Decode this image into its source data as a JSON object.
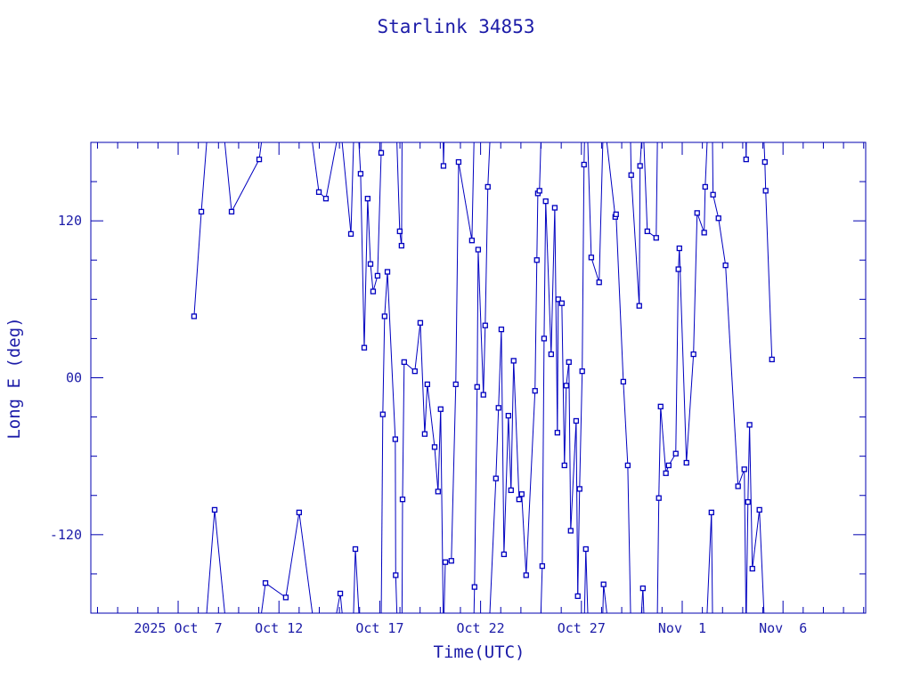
{
  "chart_data": {
    "type": "line",
    "title": "Starlink 34853",
    "xlabel": "Time(UTC)",
    "ylabel": "Long E (deg)",
    "x_unit": "day of month counted from 2025 Oct (values above 31 are November days + 31)",
    "xlim": [
      2.67,
      41.1
    ],
    "ylim": [
      -180,
      180
    ],
    "x_ticks": [
      {
        "value": 7,
        "label": "2025 Oct  7"
      },
      {
        "value": 12,
        "label": "Oct 12"
      },
      {
        "value": 17,
        "label": "Oct 17"
      },
      {
        "value": 22,
        "label": "Oct 22"
      },
      {
        "value": 27,
        "label": "Oct 27"
      },
      {
        "value": 32,
        "label": "Nov  1"
      },
      {
        "value": 37,
        "label": "Nov  6"
      }
    ],
    "y_ticks": [
      {
        "value": 120,
        "label": "120"
      },
      {
        "value": 0,
        "label": "00"
      },
      {
        "value": -120,
        "label": "-120"
      }
    ],
    "y_minor_step": 30,
    "x_minor_step": 1,
    "wrap": true,
    "grid": false,
    "series": [
      {
        "name": "Starlink 34853",
        "color": "#0000c0",
        "marker": "square",
        "x": [
          7.79,
          8.15,
          8.81,
          9.65,
          11.02,
          11.33,
          12.34,
          13.0,
          13.98,
          14.33,
          15.04,
          15.57,
          15.79,
          16.05,
          16.23,
          16.4,
          16.54,
          16.67,
          16.89,
          17.07,
          17.15,
          17.24,
          17.38,
          17.77,
          17.79,
          17.99,
          18.08,
          18.13,
          18.21,
          18.74,
          19.01,
          19.23,
          19.36,
          19.72,
          19.89,
          20.02,
          20.16,
          20.25,
          20.55,
          20.77,
          20.91,
          21.57,
          21.7,
          21.83,
          21.88,
          22.14,
          22.23,
          22.36,
          22.76,
          22.89,
          23.03,
          23.16,
          23.38,
          23.51,
          23.64,
          23.91,
          24.04,
          24.26,
          24.7,
          24.79,
          24.84,
          24.92,
          25.06,
          25.15,
          25.23,
          25.5,
          25.68,
          25.81,
          25.85,
          26.03,
          26.16,
          26.25,
          26.38,
          26.47,
          26.74,
          26.82,
          26.91,
          27.04,
          27.13,
          27.22,
          27.49,
          27.88,
          28.1,
          28.68,
          28.72,
          29.08,
          29.3,
          29.47,
          29.87,
          29.91,
          30.05,
          30.27,
          30.71,
          30.84,
          30.93,
          31.19,
          31.33,
          31.68,
          31.81,
          31.86,
          32.21,
          32.56,
          32.74,
          33.09,
          33.14,
          33.45,
          33.53,
          33.8,
          34.15,
          34.77,
          35.08,
          35.17,
          35.26,
          35.34,
          35.48,
          35.83,
          36.1,
          36.14,
          36.45
        ],
        "y": [
          47,
          127,
          -101,
          127,
          167,
          -157,
          -168,
          -103,
          142,
          137,
          -165,
          110,
          -131,
          156,
          23,
          137,
          87,
          66,
          78,
          172,
          -28,
          47,
          81,
          -47,
          -151,
          112,
          101,
          -93,
          12,
          5,
          42,
          -43,
          -5,
          -53,
          -87,
          -24,
          162,
          -141,
          -140,
          -5,
          165,
          105,
          -160,
          -7,
          98,
          -13,
          40,
          146,
          -77,
          -23,
          37,
          -135,
          -29,
          -86,
          13,
          -93,
          -89,
          -151,
          -10,
          90,
          141,
          143,
          -144,
          30,
          135,
          18,
          130,
          -42,
          60,
          57,
          -67,
          -6,
          12,
          -117,
          -33,
          -167,
          -85,
          5,
          163,
          -131,
          92,
          73,
          -158,
          123,
          125,
          -3,
          -67,
          155,
          55,
          162,
          -161,
          112,
          107,
          -92,
          -22,
          -73,
          -67,
          -58,
          83,
          99,
          -65,
          18,
          126,
          111,
          146,
          -103,
          140,
          122,
          86,
          -83,
          -70,
          167,
          -95,
          -36,
          -146,
          -101,
          165,
          143,
          14
        ]
      }
    ]
  }
}
